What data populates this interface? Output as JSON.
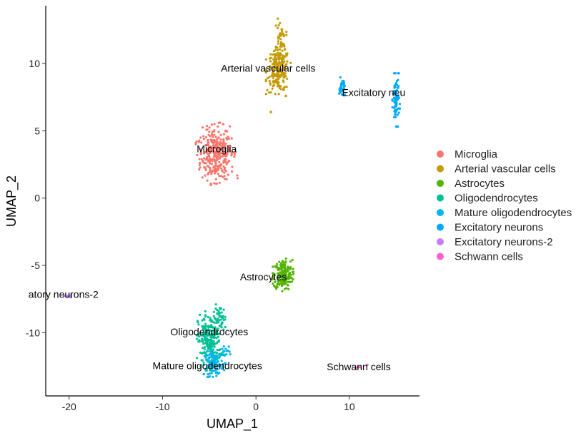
{
  "chart_data": {
    "type": "scatter",
    "title": "",
    "xlabel": "UMAP_1",
    "ylabel": "UMAP_2",
    "xlim": [
      -22.5,
      17.5
    ],
    "ylim": [
      -14.7,
      14.3
    ],
    "x_ticks": [
      {
        "value": -20,
        "label": "-20"
      },
      {
        "value": -10,
        "label": "-10"
      },
      {
        "value": 0,
        "label": "0"
      },
      {
        "value": 10,
        "label": "10"
      }
    ],
    "y_ticks": [
      {
        "value": -10,
        "label": "-10"
      },
      {
        "value": -5,
        "label": "-5"
      },
      {
        "value": 0,
        "label": "0"
      },
      {
        "value": 5,
        "label": "5"
      },
      {
        "value": 10,
        "label": "10"
      }
    ],
    "grid": false,
    "legend_position": "right",
    "series": [
      {
        "name": "Microglia",
        "color": "#F8766D",
        "label": "Microglia",
        "label_xy": [
          -4.2,
          3.4
        ],
        "blobs": [
          {
            "cx": -4.3,
            "cy": 3.3,
            "sx": 0.9,
            "sy": 1.0,
            "rot": 10,
            "n": 320
          }
        ],
        "extra_points": [
          [
            -3.5,
            5.5
          ]
        ]
      },
      {
        "name": "Arterial vascular cells",
        "color": "#C49A00",
        "label": "Arterial vascular cells",
        "label_xy": [
          1.3,
          9.4
        ],
        "blobs": [
          {
            "cx": 2.4,
            "cy": 9.5,
            "sx": 0.6,
            "sy": 0.8,
            "rot": 0,
            "n": 210
          },
          {
            "cx": 2.6,
            "cy": 11.8,
            "sx": 0.3,
            "sy": 0.7,
            "rot": 0,
            "n": 40
          }
        ],
        "extra_points": [
          [
            1.6,
            6.4
          ],
          [
            3.2,
            7.6
          ]
        ]
      },
      {
        "name": "Astrocytes",
        "color": "#53B400",
        "label": "Astrocytes",
        "label_xy": [
          0.8,
          -6.1
        ],
        "blobs": [
          {
            "cx": 2.9,
            "cy": -5.7,
            "sx": 0.5,
            "sy": 0.55,
            "rot": 0,
            "n": 200
          }
        ],
        "extra_points": []
      },
      {
        "name": "Oligodendrocytes",
        "color": "#00C094",
        "label": "Oligodendrocytes",
        "label_xy": [
          -5.0,
          -10.2
        ],
        "blobs": [
          {
            "cx": -5.0,
            "cy": -10.6,
            "sx": 0.6,
            "sy": 1.0,
            "rot": 0,
            "n": 240
          },
          {
            "cx": -3.8,
            "cy": -9.0,
            "sx": 0.3,
            "sy": 0.5,
            "rot": 0,
            "n": 40
          }
        ],
        "extra_points": []
      },
      {
        "name": "Mature oligodendrocytes",
        "color": "#00B6EB",
        "label": "Mature oligodendrocytes",
        "label_xy": [
          -5.2,
          -12.7
        ],
        "blobs": [
          {
            "cx": -4.5,
            "cy": -12.3,
            "sx": 0.5,
            "sy": 0.45,
            "rot": 0,
            "n": 100
          },
          {
            "cx": -3.3,
            "cy": -11.5,
            "sx": 0.25,
            "sy": 0.35,
            "rot": 0,
            "n": 20
          }
        ],
        "extra_points": []
      },
      {
        "name": "Excitatory neurons",
        "color": "#00A9FF",
        "label": "Excitatory neu",
        "label_xy": [
          12.6,
          7.6
        ],
        "blobs": [
          {
            "cx": 9.2,
            "cy": 8.2,
            "sx": 0.15,
            "sy": 0.35,
            "rot": 0,
            "n": 35
          },
          {
            "cx": 15.0,
            "cy": 7.3,
            "sx": 0.18,
            "sy": 0.9,
            "rot": 0,
            "n": 80
          }
        ],
        "extra_points": []
      },
      {
        "name": "Excitatory neurons-2",
        "color": "#C77CFF",
        "label": "atory neurons-2",
        "label_xy": [
          -20.6,
          -7.4
        ],
        "blobs": [
          {
            "cx": -20.1,
            "cy": -7.3,
            "sx": 0.3,
            "sy": 0.05,
            "rot": 0,
            "n": 10
          }
        ],
        "extra_points": []
      },
      {
        "name": "Schwann cells",
        "color": "#FF61CC",
        "label": "Schwann cells",
        "label_xy": [
          11.0,
          -12.8
        ],
        "blobs": [
          {
            "cx": 11.0,
            "cy": -12.6,
            "sx": 0.3,
            "sy": 0.05,
            "rot": 0,
            "n": 4
          }
        ],
        "extra_points": [
          [
            11.9,
            -12.4
          ]
        ]
      }
    ]
  }
}
